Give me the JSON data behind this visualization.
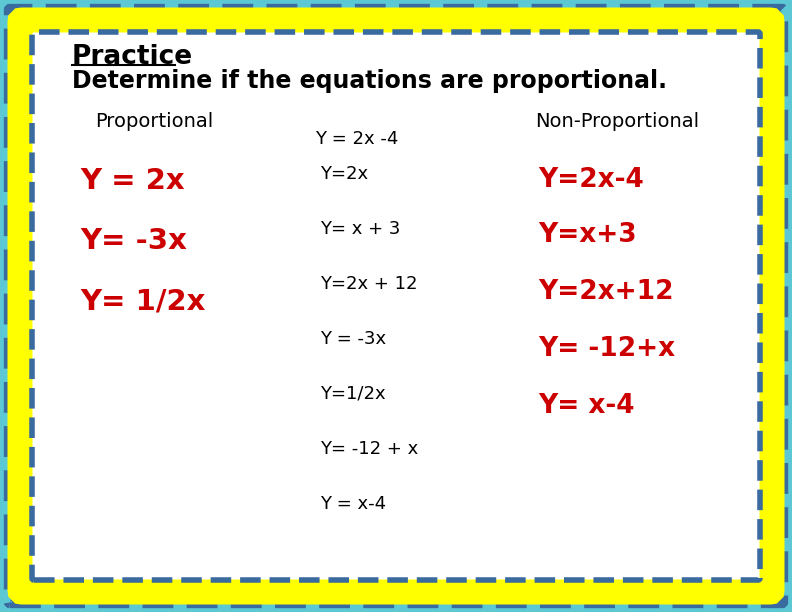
{
  "outer_bg_color": "#5BC8D4",
  "dashed_border_color": "#3A6B9F",
  "yellow_border_color": "#FFFF00",
  "inner_bg_color": "#FFFFFF",
  "title_text": "Practice",
  "subtitle_text": "Determine if the equations are proportional.",
  "title_color": "#000000",
  "subtitle_color": "#000000",
  "col1_header": "Proportional",
  "col3_header": "Non-Proportional",
  "header_color": "#000000",
  "col1_items": [
    "Y = 2x",
    "Y= -3x",
    "Y= 1/2x"
  ],
  "col1_color": "#CC0000",
  "col2_top": "Y = 2x -4",
  "col2_items": [
    "Y=2x",
    "Y= x + 3",
    "Y=2x + 12",
    "Y = -3x",
    "Y=1/2x",
    "Y= -12 + x",
    "Y = x-4"
  ],
  "col2_color": "#000000",
  "col3_items": [
    "Y=2x-4",
    "Y=x+3",
    "Y=2x+12",
    "Y= -12+x",
    "Y= x-4"
  ],
  "col3_color": "#CC0000",
  "figwidth": 7.92,
  "figheight": 6.12
}
